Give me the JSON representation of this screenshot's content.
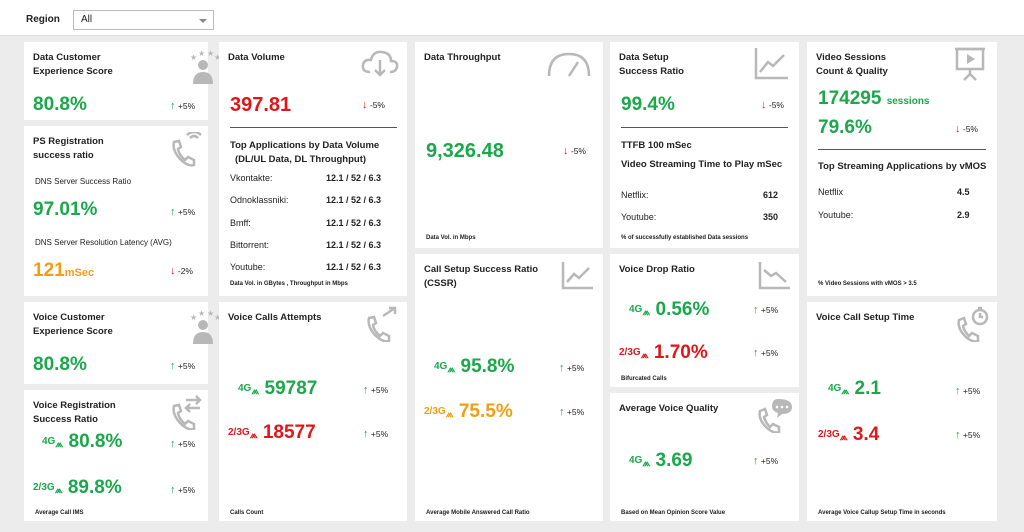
{
  "region": {
    "label": "Region",
    "value": "All"
  },
  "dcx": {
    "title1": "Data Customer",
    "title2": "Experience Score",
    "value": "80.8%",
    "change": "+5%"
  },
  "ps": {
    "title1": "PS Registration",
    "title2": "success ratio",
    "dns_label": "DNS Server Success Ratio",
    "dns_value": "97.01%",
    "dns_change": "+5%",
    "lat_label": "DNS Server Resolution Latency (AVG)",
    "lat_value": "121",
    "lat_unit": "mSec",
    "lat_change": "-2%"
  },
  "vcx": {
    "title1": "Voice Customer",
    "title2": "Experience Score",
    "value": "80.8%",
    "change": "+5%"
  },
  "vreg": {
    "title1": "Voice Registration",
    "title2": "Success Ratio",
    "g4_label": "4G",
    "g4_value": "80.8%",
    "g4_change": "+5%",
    "g23_label": "2/3G",
    "g23_value": "89.8%",
    "g23_change": "+5%",
    "footer": "Average Call IMS"
  },
  "dvol": {
    "title": "Data Volume",
    "value": "397.81",
    "change": "-5%",
    "apps_title1": "Top Applications by Data Volume",
    "apps_title2": "(DL/UL Data, DL Throughput)",
    "apps": [
      {
        "name": "Vkontakte:",
        "value": "12.1 / 52 / 6.3"
      },
      {
        "name": "Odnoklassniki:",
        "value": "12.1 / 52 / 6.3"
      },
      {
        "name": "Bmff:",
        "value": "12.1 / 52 / 6.3"
      },
      {
        "name": "Bittorrent:",
        "value": "12.1 / 52 / 6.3"
      },
      {
        "name": "Youtube:",
        "value": "12.1 / 52 / 6.3"
      }
    ],
    "footer": "Data Vol. in GBytes , Throughput in Mbps"
  },
  "vca": {
    "title": "Voice Calls Attempts",
    "g4_label": "4G",
    "g4_value": "59787",
    "g4_change": "+5%",
    "g23_label": "2/3G",
    "g23_value": "18577",
    "g23_change": "+5%",
    "footer": "Calls Count"
  },
  "dthr": {
    "title": "Data Throughput",
    "value": "9,326.48",
    "change": "-5%",
    "footer": "Data Vol. in Mbps"
  },
  "cssr": {
    "title1": "Call Setup Success Ratio",
    "title2": "(CSSR)",
    "g4_label": "4G",
    "g4_value": "95.8%",
    "g4_change": "+5%",
    "g23_label": "2/3G",
    "g23_value": "75.5%",
    "g23_change": "+5%",
    "footer": "Average Mobile Answered Call Ratio"
  },
  "dsetup": {
    "title1": "Data Setup",
    "title2": "Success Ratio",
    "value": "99.4%",
    "change": "-5%",
    "ttfb": "TTFB 100 mSec",
    "vst": "Video Streaming Time to Play mSec",
    "rows": [
      {
        "name": "Netflix:",
        "value": "612"
      },
      {
        "name": "Youtube:",
        "value": "350"
      }
    ],
    "footer": "% of successfully  established Data sessions"
  },
  "vdrop": {
    "title": "Voice Drop Ratio",
    "g4_label": "4G",
    "g4_value": "0.56%",
    "g4_change": "+5%",
    "g23_label": "2/3G",
    "g23_value": "1.70%",
    "g23_change": "+5%",
    "footer": "Bifurcated Calls"
  },
  "avq": {
    "title": "Average Voice Quality",
    "g4_label": "4G",
    "value": "3.69",
    "change": "+5%",
    "footer": "Based on Mean Opinion Score Value"
  },
  "vsess": {
    "title1": "Video Sessions",
    "title2": "Count & Quality",
    "sessions": "174295",
    "sessions_unit": "sessions",
    "quality": "79.6%",
    "change": "-5%",
    "apps_title": "Top Streaming Applications by vMOS",
    "rows": [
      {
        "name": "Netflix",
        "value": "4.5"
      },
      {
        "name": "Youtube:",
        "value": "2.9"
      }
    ],
    "footer": "% Video Sessions with vMOS > 3.5"
  },
  "vcst": {
    "title": "Voice Call Setup Time",
    "g4_label": "4G",
    "g4_value": "2.1",
    "g4_change": "+5%",
    "g23_label": "2/3G",
    "g23_value": "3.4",
    "g23_change": "+5%",
    "footer": "Average Voice  Callup Setup Time in seconds"
  },
  "arrows": {
    "up": "↑",
    "down": "↓"
  },
  "colors": {
    "green": "#1aa84a",
    "red": "#e0161b",
    "orange": "#f29d12",
    "icon": "#b8b8b8"
  }
}
